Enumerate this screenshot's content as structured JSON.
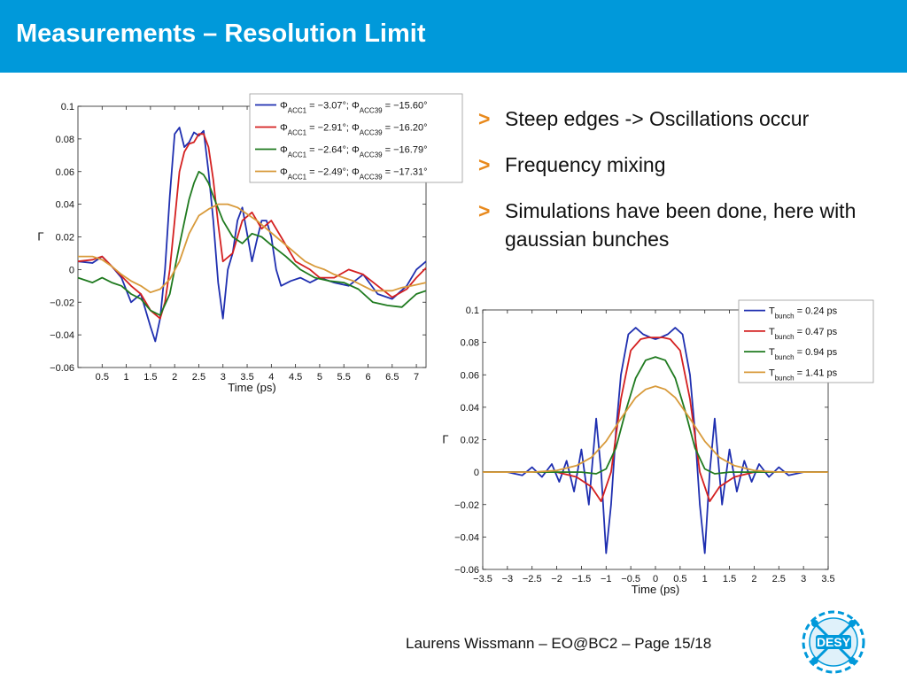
{
  "slide": {
    "title": "Measurements – Resolution Limit",
    "bullets": [
      "Steep edges -> Oscillations occur",
      "Frequency mixing",
      "Simulations have been done, here with gaussian bunches"
    ],
    "bullet_marker": ">",
    "footer": "Laurens Wissmann – EO@BC2 – Page 15/18",
    "logo_text": "DESY",
    "colors": {
      "title_bar": "#0099da",
      "bullet_marker": "#e8891c",
      "logo": "#0099da"
    }
  },
  "chart_data": [
    {
      "type": "line",
      "xlabel": "Time (ps)",
      "ylabel": "Γ",
      "xlim": [
        0,
        7.2
      ],
      "ylim": [
        -0.06,
        0.1
      ],
      "xticks": [
        0.5,
        1,
        1.5,
        2,
        2.5,
        3,
        3.5,
        4,
        4.5,
        5,
        5.5,
        6,
        6.5,
        7
      ],
      "yticks": [
        -0.06,
        -0.04,
        -0.02,
        0,
        0.02,
        0.04,
        0.06,
        0.08,
        0.1
      ],
      "ytick_labels": [
        "−0.06",
        "−0.04",
        "−0.02",
        "0",
        "0.02",
        "0.04",
        "0.06",
        "0.08",
        "0.1"
      ],
      "legend_position": "top-right",
      "series": [
        {
          "name": "ΦACC1 = −3.07°; ΦACC39 = −15.60°",
          "color": "#1f2fb0",
          "x": [
            0,
            0.3,
            0.5,
            0.7,
            0.9,
            1.1,
            1.3,
            1.5,
            1.6,
            1.7,
            1.8,
            1.9,
            2.0,
            2.1,
            2.2,
            2.3,
            2.4,
            2.5,
            2.6,
            2.7,
            2.8,
            2.9,
            3.0,
            3.1,
            3.2,
            3.3,
            3.4,
            3.5,
            3.6,
            3.7,
            3.8,
            3.9,
            4.0,
            4.1,
            4.2,
            4.4,
            4.6,
            4.8,
            5.0,
            5.3,
            5.6,
            5.9,
            6.2,
            6.5,
            6.8,
            7.0,
            7.2
          ],
          "y": [
            0.005,
            0.004,
            0.008,
            0.002,
            -0.005,
            -0.02,
            -0.015,
            -0.035,
            -0.044,
            -0.03,
            0.0,
            0.045,
            0.083,
            0.087,
            0.075,
            0.078,
            0.084,
            0.082,
            0.085,
            0.06,
            0.03,
            -0.008,
            -0.03,
            0.0,
            0.01,
            0.03,
            0.038,
            0.022,
            0.005,
            0.018,
            0.03,
            0.03,
            0.02,
            0.0,
            -0.01,
            -0.007,
            -0.005,
            -0.008,
            -0.005,
            -0.008,
            -0.01,
            -0.003,
            -0.015,
            -0.018,
            -0.01,
            0.0,
            0.005
          ]
        },
        {
          "name": "ΦACC1 = −2.91°; ΦACC39 = −16.20°",
          "color": "#d42020",
          "x": [
            0,
            0.3,
            0.5,
            0.7,
            0.9,
            1.1,
            1.3,
            1.5,
            1.7,
            1.8,
            1.9,
            2.0,
            2.1,
            2.2,
            2.3,
            2.4,
            2.5,
            2.6,
            2.7,
            2.8,
            2.9,
            3.0,
            3.2,
            3.4,
            3.6,
            3.8,
            4.0,
            4.2,
            4.5,
            4.8,
            5.0,
            5.3,
            5.6,
            5.9,
            6.2,
            6.5,
            6.8,
            7.0,
            7.2
          ],
          "y": [
            0.005,
            0.006,
            0.008,
            0.002,
            -0.004,
            -0.01,
            -0.015,
            -0.025,
            -0.03,
            -0.02,
            0.0,
            0.03,
            0.06,
            0.072,
            0.077,
            0.078,
            0.083,
            0.083,
            0.075,
            0.055,
            0.028,
            0.005,
            0.01,
            0.03,
            0.035,
            0.025,
            0.03,
            0.02,
            0.005,
            0.0,
            -0.005,
            -0.005,
            0.0,
            -0.003,
            -0.01,
            -0.017,
            -0.012,
            -0.005,
            0.001
          ]
        },
        {
          "name": "ΦACC1 = −2.64°; ΦACC39 = −16.79°",
          "color": "#1f7a1f",
          "x": [
            0,
            0.3,
            0.5,
            0.7,
            0.9,
            1.1,
            1.3,
            1.5,
            1.7,
            1.9,
            2.1,
            2.3,
            2.4,
            2.5,
            2.6,
            2.7,
            2.8,
            3.0,
            3.2,
            3.4,
            3.6,
            3.8,
            4.0,
            4.3,
            4.6,
            4.9,
            5.2,
            5.5,
            5.8,
            6.1,
            6.4,
            6.7,
            7.0,
            7.2
          ],
          "y": [
            -0.005,
            -0.008,
            -0.005,
            -0.008,
            -0.01,
            -0.015,
            -0.018,
            -0.025,
            -0.028,
            -0.015,
            0.015,
            0.043,
            0.053,
            0.06,
            0.058,
            0.053,
            0.045,
            0.03,
            0.02,
            0.016,
            0.022,
            0.02,
            0.015,
            0.008,
            0.0,
            -0.005,
            -0.007,
            -0.008,
            -0.012,
            -0.02,
            -0.022,
            -0.023,
            -0.015,
            -0.013
          ]
        },
        {
          "name": "ΦACC1 = −2.49°; ΦACC39 = −17.31°",
          "color": "#d89a3a",
          "x": [
            0,
            0.3,
            0.5,
            0.7,
            0.9,
            1.1,
            1.3,
            1.5,
            1.7,
            1.9,
            2.1,
            2.3,
            2.5,
            2.7,
            2.9,
            3.1,
            3.3,
            3.5,
            3.7,
            3.9,
            4.1,
            4.3,
            4.5,
            4.7,
            4.9,
            5.1,
            5.3,
            5.5,
            5.7,
            5.9,
            6.1,
            6.3,
            6.5,
            6.7,
            6.9,
            7.2
          ],
          "y": [
            0.008,
            0.008,
            0.006,
            0.002,
            -0.003,
            -0.007,
            -0.01,
            -0.014,
            -0.012,
            -0.006,
            0.005,
            0.022,
            0.033,
            0.037,
            0.04,
            0.04,
            0.038,
            0.034,
            0.03,
            0.025,
            0.02,
            0.015,
            0.01,
            0.005,
            0.002,
            0.0,
            -0.003,
            -0.005,
            -0.007,
            -0.01,
            -0.013,
            -0.013,
            -0.013,
            -0.011,
            -0.01,
            -0.008
          ]
        }
      ]
    },
    {
      "type": "line",
      "xlabel": "Time (ps)",
      "ylabel": "Γ",
      "xlim": [
        -3.5,
        3.5
      ],
      "ylim": [
        -0.06,
        0.1
      ],
      "xticks": [
        -3.5,
        -3,
        -2.5,
        -2,
        -1.5,
        -1,
        -0.5,
        0,
        0.5,
        1,
        1.5,
        2,
        2.5,
        3,
        3.5
      ],
      "xtick_labels": [
        "−3.5",
        "−3",
        "−2.5",
        "−2",
        "−1.5",
        "−1",
        "−0.5",
        "0",
        "0.5",
        "1",
        "1.5",
        "2",
        "2.5",
        "3",
        "3.5"
      ],
      "yticks": [
        -0.06,
        -0.04,
        -0.02,
        0,
        0.02,
        0.04,
        0.06,
        0.08,
        0.1
      ],
      "ytick_labels": [
        "−0.06",
        "−0.04",
        "−0.02",
        "0",
        "0.02",
        "0.04",
        "0.06",
        "0.08",
        "0.1"
      ],
      "legend_position": "top-right",
      "series": [
        {
          "name": "Tbunch = 0.24 ps",
          "color": "#1f2fb0",
          "x": [
            -3.5,
            -3.0,
            -2.7,
            -2.5,
            -2.3,
            -2.1,
            -1.95,
            -1.8,
            -1.65,
            -1.5,
            -1.35,
            -1.2,
            -1.1,
            -1.0,
            -0.9,
            -0.8,
            -0.7,
            -0.55,
            -0.4,
            -0.25,
            -0.1,
            0,
            0.1,
            0.25,
            0.4,
            0.55,
            0.7,
            0.8,
            0.9,
            1.0,
            1.1,
            1.2,
            1.35,
            1.5,
            1.65,
            1.8,
            1.95,
            2.1,
            2.3,
            2.5,
            2.7,
            3.0,
            3.5
          ],
          "y": [
            0.0,
            0.0,
            -0.002,
            0.003,
            -0.003,
            0.005,
            -0.006,
            0.007,
            -0.012,
            0.014,
            -0.02,
            0.033,
            0.0,
            -0.05,
            -0.02,
            0.025,
            0.06,
            0.085,
            0.089,
            0.085,
            0.083,
            0.082,
            0.083,
            0.085,
            0.089,
            0.085,
            0.06,
            0.025,
            -0.02,
            -0.05,
            0.0,
            0.033,
            -0.02,
            0.014,
            -0.012,
            0.007,
            -0.006,
            0.005,
            -0.003,
            0.003,
            -0.002,
            0.0,
            0.0
          ]
        },
        {
          "name": "Tbunch = 0.47 ps",
          "color": "#d42020",
          "x": [
            -3.5,
            -2.0,
            -1.6,
            -1.3,
            -1.1,
            -0.9,
            -0.7,
            -0.5,
            -0.3,
            -0.15,
            0,
            0.15,
            0.3,
            0.5,
            0.7,
            0.9,
            1.1,
            1.3,
            1.6,
            2.0,
            3.5
          ],
          "y": [
            0.0,
            0.0,
            -0.003,
            -0.009,
            -0.018,
            0.0,
            0.045,
            0.075,
            0.082,
            0.083,
            0.083,
            0.083,
            0.082,
            0.075,
            0.045,
            0.0,
            -0.018,
            -0.009,
            -0.003,
            0.0,
            0.0
          ]
        },
        {
          "name": "Tbunch = 0.94 ps",
          "color": "#1f7a1f",
          "x": [
            -3.5,
            -1.5,
            -1.2,
            -1.0,
            -0.8,
            -0.6,
            -0.4,
            -0.2,
            0,
            0.2,
            0.4,
            0.6,
            0.8,
            1.0,
            1.2,
            1.5,
            3.5
          ],
          "y": [
            0.0,
            0.0,
            -0.001,
            0.002,
            0.015,
            0.038,
            0.058,
            0.069,
            0.071,
            0.069,
            0.058,
            0.038,
            0.015,
            0.002,
            -0.001,
            0.0,
            0.0
          ]
        },
        {
          "name": "Tbunch = 1.41 ps",
          "color": "#d89a3a",
          "x": [
            -3.5,
            -2.5,
            -2.0,
            -1.6,
            -1.3,
            -1.0,
            -0.7,
            -0.4,
            -0.2,
            0,
            0.2,
            0.4,
            0.7,
            1.0,
            1.3,
            1.6,
            2.0,
            2.5,
            3.5
          ],
          "y": [
            0.0,
            0.0,
            0.001,
            0.004,
            0.009,
            0.019,
            0.033,
            0.046,
            0.051,
            0.053,
            0.051,
            0.046,
            0.033,
            0.019,
            0.009,
            0.004,
            0.001,
            0.0,
            0.0
          ]
        }
      ]
    }
  ]
}
